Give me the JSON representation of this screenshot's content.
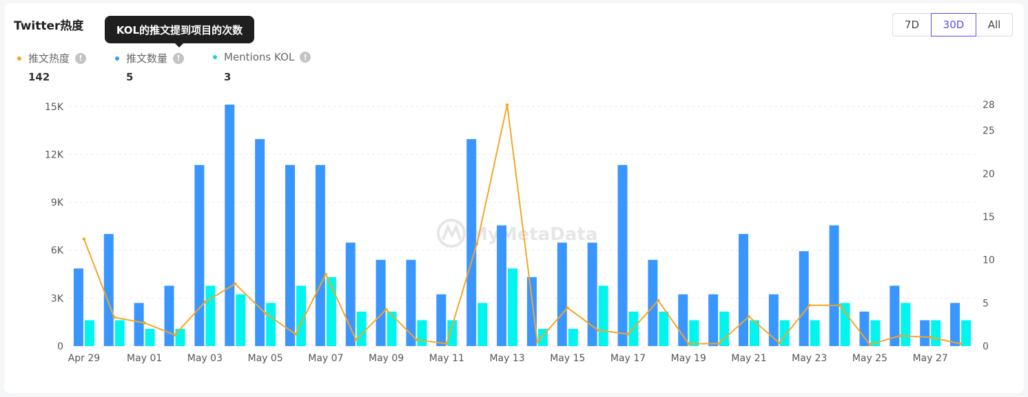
{
  "title": "Twitter热度",
  "tooltip": "KOL的推文提到项目的次数",
  "range_buttons": [
    {
      "label": "7D",
      "active": false
    },
    {
      "label": "30D",
      "active": true
    },
    {
      "label": "All",
      "active": false
    }
  ],
  "legend": [
    {
      "label": "推文热度",
      "value": "142",
      "color": "#f5a623"
    },
    {
      "label": "推文数量",
      "value": "5",
      "color": "#3a96ff"
    },
    {
      "label": "Mentions KOL",
      "value": "3",
      "color": "#1ad1cc"
    }
  ],
  "info_glyph": "!",
  "watermark": "MyMetaData",
  "chart_data": {
    "type": "bar",
    "categories": [
      "Apr 29",
      "Apr 30",
      "May 01",
      "May 02",
      "May 03",
      "May 04",
      "May 05",
      "May 06",
      "May 07",
      "May 08",
      "May 09",
      "May 10",
      "May 11",
      "May 12",
      "May 13",
      "May 14",
      "May 15",
      "May 16",
      "May 17",
      "May 18",
      "May 19",
      "May 20",
      "May 21",
      "May 22",
      "May 23",
      "May 24",
      "May 25",
      "May 26",
      "May 27",
      "May 28"
    ],
    "x_tick_labels": [
      "Apr 29",
      "May 01",
      "May 03",
      "May 05",
      "May 07",
      "May 09",
      "May 11",
      "May 13",
      "May 15",
      "May 17",
      "May 19",
      "May 21",
      "May 23",
      "May 25",
      "May 27"
    ],
    "left_axis": {
      "ticks": [
        "0",
        "3K",
        "6K",
        "9K",
        "12K",
        "15K"
      ],
      "ylim": [
        0,
        15120
      ]
    },
    "right_axis": {
      "ticks": [
        "0",
        "5",
        "10",
        "15",
        "20",
        "25",
        "28"
      ],
      "ylim": [
        0,
        28
      ]
    },
    "series": [
      {
        "name": "推文数量",
        "type": "bar",
        "axis": "right",
        "color": "#3a96ff",
        "values": [
          9,
          13,
          5,
          7,
          21,
          28,
          24,
          21,
          21,
          12,
          10,
          10,
          6,
          24,
          14,
          8,
          12,
          12,
          21,
          10,
          6,
          6,
          13,
          6,
          11,
          14,
          4,
          7,
          3,
          5
        ]
      },
      {
        "name": "Mentions KOL",
        "type": "bar",
        "axis": "right",
        "color": "#1ad1cc",
        "values": [
          3,
          3,
          2,
          2,
          7,
          6,
          5,
          7,
          8,
          4,
          4,
          3,
          3,
          5,
          9,
          2,
          2,
          7,
          4,
          4,
          3,
          4,
          3,
          3,
          3,
          5,
          3,
          5,
          3,
          3
        ]
      },
      {
        "name": "推文热度",
        "type": "line",
        "axis": "left",
        "color": "#f5a623",
        "values": [
          6700,
          1800,
          1450,
          700,
          2750,
          3900,
          2050,
          750,
          4500,
          400,
          2300,
          400,
          150,
          6400,
          15100,
          250,
          2400,
          1000,
          750,
          2850,
          150,
          150,
          1850,
          200,
          2550,
          2550,
          100,
          650,
          550,
          150
        ]
      }
    ],
    "grid": true,
    "legend_position": "top-left"
  }
}
